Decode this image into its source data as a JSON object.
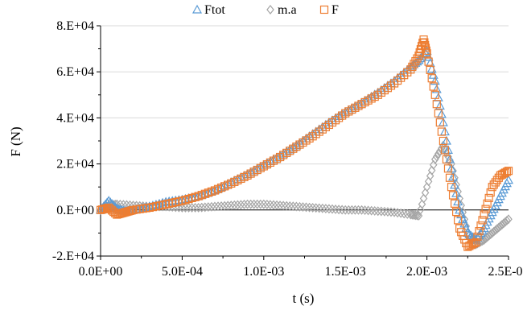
{
  "chart_data": {
    "type": "scatter",
    "xlabel": "t (s)",
    "ylabel": "F (N)",
    "xlim": [
      0,
      0.0025
    ],
    "ylim": [
      -20000,
      80000
    ],
    "x_ticks": [
      0,
      0.0005,
      0.001,
      0.0015,
      0.002,
      0.0025
    ],
    "x_tick_labels": [
      "0.0E+00",
      "5.0E-04",
      "1.0E-03",
      "1.5E-03",
      "2.0E-03",
      "2.5E-03"
    ],
    "y_ticks": [
      -20000,
      0,
      20000,
      40000,
      60000,
      80000
    ],
    "y_tick_labels": [
      "-2.E+04",
      "0.E+00",
      "2.E+04",
      "4.E+04",
      "6.E+04",
      "8.E+04"
    ],
    "grid": "horizontal",
    "legend_position": "top",
    "series": [
      {
        "name": "Ftot",
        "marker": "triangle",
        "color": "#5b9bd5",
        "x": [
          0,
          5e-05,
          0.0001,
          0.00015,
          0.0002,
          0.0003,
          0.0004,
          0.0005,
          0.0006,
          0.0007,
          0.0008,
          0.0009,
          0.001,
          0.0011,
          0.0012,
          0.0013,
          0.0014,
          0.0015,
          0.0016,
          0.0017,
          0.0018,
          0.0019,
          0.00195,
          0.002,
          0.00205,
          0.0021,
          0.00215,
          0.0022,
          0.00225,
          0.0023,
          0.00235,
          0.0024,
          0.00245,
          0.0025
        ],
        "y": [
          0,
          4000,
          500,
          -500,
          0,
          1500,
          3500,
          4500,
          6000,
          8500,
          12000,
          15500,
          19500,
          23500,
          28000,
          33000,
          38000,
          42500,
          46500,
          51000,
          56000,
          62000,
          65000,
          69000,
          56000,
          38000,
          18000,
          0,
          -10000,
          -13000,
          -8000,
          -1000,
          6000,
          13000
        ]
      },
      {
        "name": "m.a",
        "marker": "diamond",
        "color": "#a5a5a5",
        "x": [
          0,
          5e-05,
          0.0001,
          0.0002,
          0.0003,
          0.0004,
          0.0005,
          0.0006,
          0.0007,
          0.0008,
          0.0009,
          0.001,
          0.0011,
          0.0012,
          0.0013,
          0.0014,
          0.0015,
          0.0016,
          0.0017,
          0.0018,
          0.0019,
          0.00195,
          0.002,
          0.00205,
          0.0021,
          0.00215,
          0.0022,
          0.00225,
          0.0023,
          0.00235,
          0.0024,
          0.00245,
          0.0025
        ],
        "y": [
          0,
          2000,
          2500,
          2000,
          1500,
          1500,
          1000,
          1000,
          1500,
          2000,
          2500,
          2500,
          2000,
          1500,
          1000,
          500,
          0,
          0,
          -500,
          -1000,
          -2000,
          -2500,
          10000,
          22000,
          28000,
          20000,
          5000,
          -10000,
          -15000,
          -13000,
          -10000,
          -7000,
          -4000
        ]
      },
      {
        "name": "F",
        "marker": "square",
        "color": "#ed7d31",
        "x": [
          0,
          5e-05,
          0.0001,
          0.00015,
          0.0002,
          0.0003,
          0.0004,
          0.0005,
          0.0006,
          0.0007,
          0.0008,
          0.0009,
          0.001,
          0.0011,
          0.0012,
          0.0013,
          0.0014,
          0.0015,
          0.0016,
          0.0017,
          0.0018,
          0.0019,
          0.00195,
          0.00198,
          0.002,
          0.00205,
          0.0021,
          0.00215,
          0.0022,
          0.00225,
          0.0023,
          0.00235,
          0.0024,
          0.00245,
          0.0025
        ],
        "y": [
          0,
          1000,
          -2000,
          -1000,
          0,
          1000,
          2500,
          4000,
          6000,
          8500,
          11500,
          15000,
          19000,
          23000,
          27500,
          32000,
          37000,
          42000,
          46000,
          50000,
          55000,
          61000,
          67000,
          74000,
          68000,
          50000,
          30000,
          10000,
          -8000,
          -16000,
          -14000,
          -2000,
          10000,
          15000,
          17000
        ]
      }
    ]
  }
}
